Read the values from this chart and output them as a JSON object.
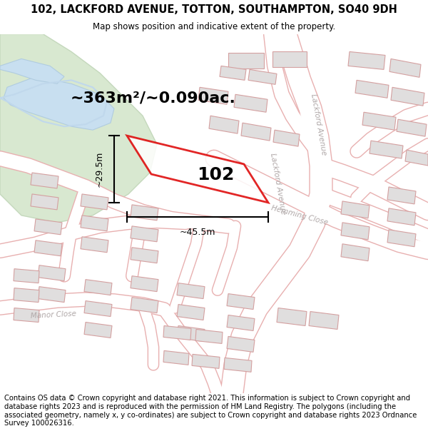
{
  "title_line1": "102, LACKFORD AVENUE, TOTTON, SOUTHAMPTON, SO40 9DH",
  "title_line2": "Map shows position and indicative extent of the property.",
  "area_label": "~363m²/~0.090ac.",
  "property_number": "102",
  "width_label": "~45.5m",
  "height_label": "~29.5m",
  "footer_text": "Contains OS data © Crown copyright and database right 2021. This information is subject to Crown copyright and database rights 2023 and is reproduced with the permission of HM Land Registry. The polygons (including the associated geometry, namely x, y co-ordinates) are subject to Crown copyright and database rights 2023 Ordnance Survey 100026316.",
  "bg_color": "#e8e8e8",
  "map_bg": "#e8e6e3",
  "road_color": "#ffffff",
  "road_outline": "#e8b0b0",
  "building_fc": "#e0dede",
  "building_ec": "#d4a0a0",
  "property_edge": "#dd0000",
  "green_color": "#d8e8d0",
  "green_edge": "#c4d8bc",
  "water_color": "#c8dff0",
  "water_edge": "#b0cce0",
  "road_label_color": "#b0a8a8",
  "title_fontsize": 10.5,
  "subtitle_fontsize": 8.5,
  "footer_fontsize": 7.2,
  "area_fontsize": 16,
  "dim_fontsize": 9,
  "prop_label_fontsize": 18
}
